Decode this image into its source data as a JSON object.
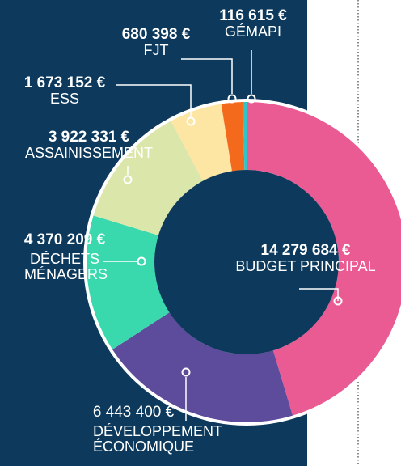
{
  "chart_data": {
    "type": "donut",
    "categories": [
      "BUDGET PRINCIPAL",
      "DÉVELOPPEMENT ÉCONOMIQUE",
      "DÉCHETS MÉNAGERS",
      "ASSAINISSEMENT",
      "ESS",
      "FJT",
      "GÉMAPI"
    ],
    "values": [
      14279684,
      6443400,
      4370209,
      3922331,
      1673152,
      680398,
      116615
    ],
    "value_labels": [
      "14 279 684 €",
      "6 443 400 €",
      "4 370 209 €",
      "3 922 331 €",
      "1 673 152 €",
      "680 398 €",
      "116 615 €"
    ],
    "colors": [
      "#ea5b93",
      "#5d4b9b",
      "#3ad9ad",
      "#dbe6aa",
      "#fde5a3",
      "#f46a1c",
      "#2cc6c8"
    ]
  }
}
